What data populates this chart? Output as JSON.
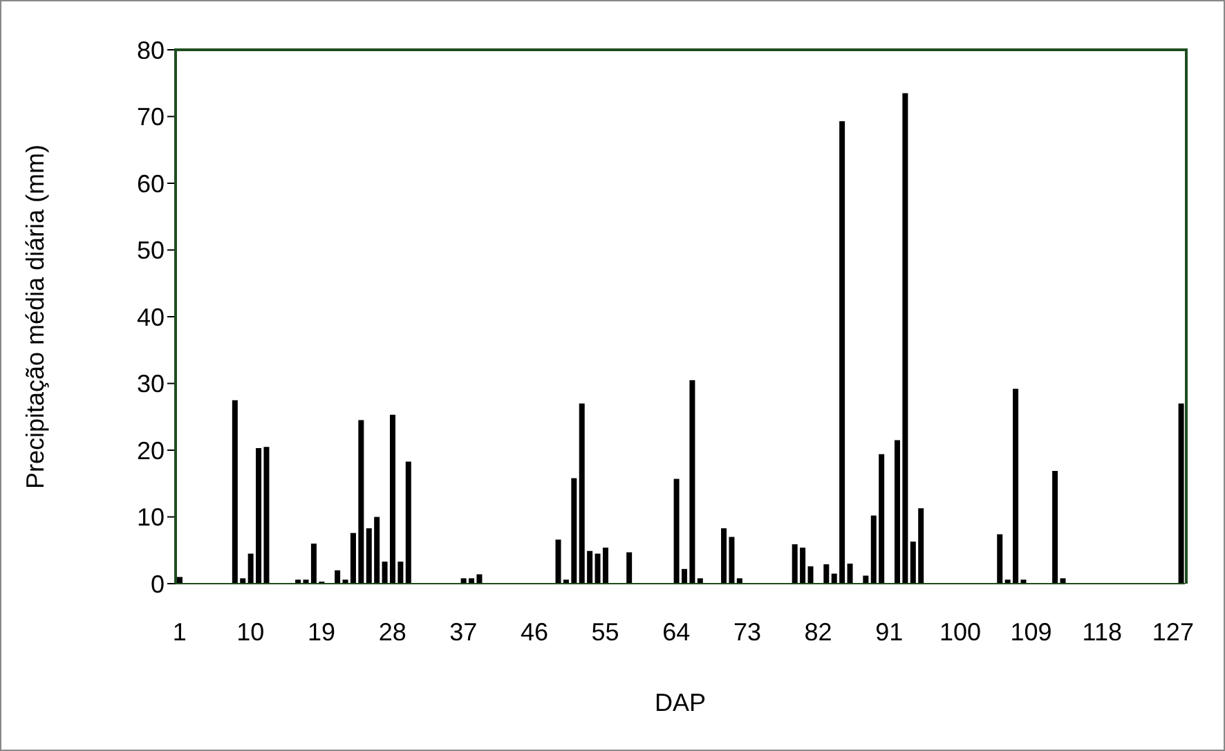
{
  "chart_data": {
    "type": "bar",
    "xlabel": "DAP",
    "ylabel": "Precipitação média diária (mm)",
    "categories": [
      "1",
      null,
      null,
      null,
      null,
      null,
      null,
      null,
      null,
      "10",
      null,
      null,
      null,
      null,
      null,
      null,
      null,
      null,
      "19",
      null,
      null,
      null,
      null,
      null,
      null,
      null,
      null,
      "28",
      null,
      null,
      null,
      null,
      null,
      null,
      null,
      null,
      "37",
      null,
      null,
      null,
      null,
      null,
      null,
      null,
      null,
      "46",
      null,
      null,
      null,
      null,
      null,
      null,
      null,
      null,
      "55",
      null,
      null,
      null,
      null,
      null,
      null,
      null,
      null,
      "64",
      null,
      null,
      null,
      null,
      null,
      null,
      null,
      null,
      "73",
      null,
      null,
      null,
      null,
      null,
      null,
      null,
      null,
      "82",
      null,
      null,
      null,
      null,
      null,
      null,
      null,
      null,
      "91",
      null,
      null,
      null,
      null,
      null,
      null,
      null,
      null,
      "100",
      null,
      null,
      null,
      null,
      null,
      null,
      null,
      null,
      "109",
      null,
      null,
      null,
      null,
      null,
      null,
      null,
      null,
      "118",
      null,
      null,
      null,
      null,
      null,
      null,
      null,
      null,
      "127",
      null
    ],
    "values": [
      1,
      0,
      0,
      0,
      0,
      0,
      0,
      27.5,
      0.8,
      4.5,
      20.3,
      20.5,
      0,
      0,
      0,
      0.6,
      0.6,
      6,
      0.3,
      0,
      2,
      0.6,
      7.6,
      24.5,
      8.3,
      10,
      3.3,
      25.3,
      3.3,
      18.3,
      0,
      0,
      0,
      0,
      0,
      0,
      0.8,
      0.8,
      1.4,
      0,
      0,
      0,
      0,
      0,
      0,
      0,
      0,
      0,
      6.6,
      0.6,
      15.8,
      27,
      4.9,
      4.5,
      5.4,
      0,
      0,
      4.7,
      0,
      0,
      0,
      0,
      0,
      15.7,
      2.2,
      30.5,
      0.8,
      0,
      0,
      8.3,
      7,
      0.8,
      0,
      0,
      0,
      0,
      0,
      0,
      5.9,
      5.4,
      2.6,
      0,
      2.9,
      1.5,
      69.3,
      3,
      0,
      1.2,
      10.2,
      19.4,
      0,
      21.5,
      73.5,
      6.3,
      11.3,
      0,
      0,
      0,
      0,
      0,
      0,
      0,
      0,
      0,
      7.4,
      0.6,
      29.2,
      0.6,
      0,
      0,
      0,
      16.9,
      0.8,
      0,
      0,
      0,
      0,
      0,
      0,
      0,
      0,
      0,
      0,
      0,
      0,
      0,
      0,
      27
    ],
    "color": "#000000",
    "ylim": [
      0,
      80
    ],
    "yticks": [
      0,
      10,
      20,
      30,
      40,
      50,
      60,
      70,
      80
    ],
    "grid": false
  }
}
